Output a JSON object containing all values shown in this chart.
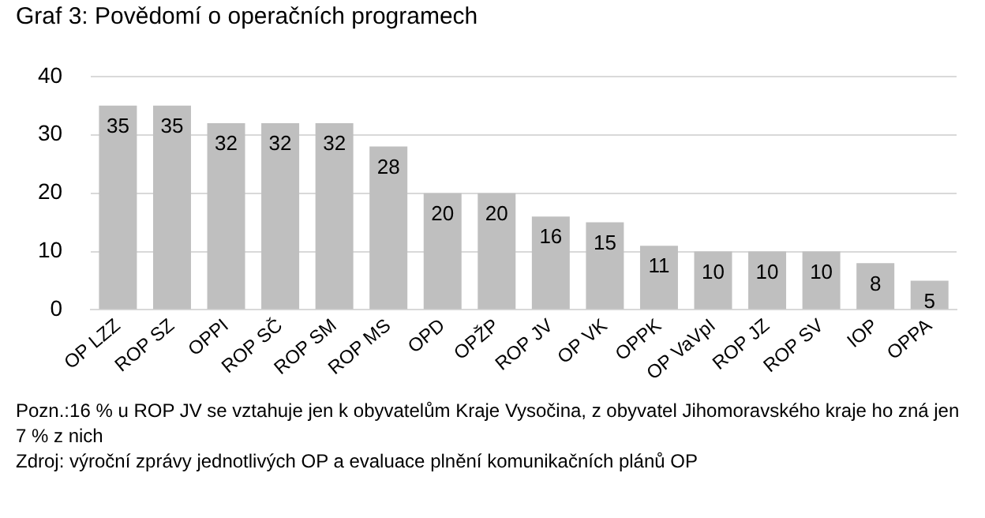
{
  "chart_data": {
    "type": "bar",
    "title": "Graf 3: Povědomí o operačních programech",
    "categories": [
      "OP LZZ",
      "ROP SZ",
      "OPPI",
      "ROP SČ",
      "ROP SM",
      "ROP MS",
      "OPD",
      "OPŽP",
      "ROP JV",
      "OP VK",
      "OPPK",
      "OP VaVpI",
      "ROP JZ",
      "ROP SV",
      "IOP",
      "OPPA"
    ],
    "values": [
      35,
      35,
      32,
      32,
      32,
      28,
      20,
      20,
      16,
      15,
      11,
      10,
      10,
      10,
      8,
      5
    ],
    "color": "#bfbfbf",
    "ylim": [
      0,
      40
    ],
    "yticks": [
      0,
      10,
      20,
      30,
      40
    ],
    "grid": "y",
    "data_labels": true,
    "annotations": [
      "Pozn.:16 % u ROP JV se vztahuje jen k obyvatelům Kraje Vysočina, z obyvatel Jihomoravského kraje ho zná jen 7 % z nich",
      "Zdroj: výroční zprávy jednotlivých OP a evaluace plnění komunikačních plánů OP"
    ]
  }
}
